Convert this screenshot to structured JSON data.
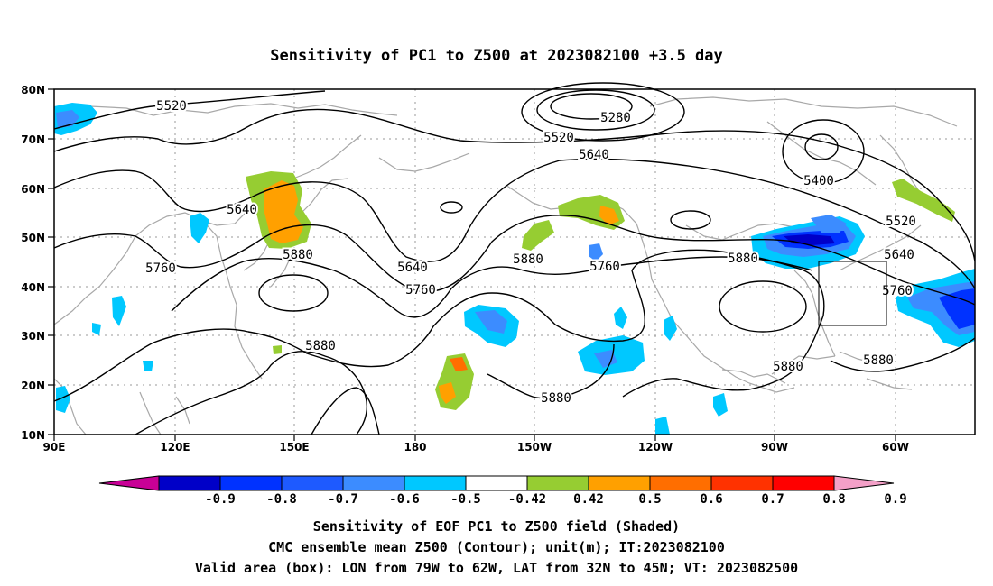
{
  "title": "Sensitivity of PC1 to Z500 at 2023082100 +3.5 day",
  "lat_labels": [
    "80N",
    "70N",
    "60N",
    "50N",
    "40N",
    "30N",
    "20N",
    "10N"
  ],
  "lon_labels": [
    "90E",
    "120E",
    "150E",
    "180",
    "150W",
    "120W",
    "90W",
    "60W"
  ],
  "contour_labels": [
    "5520",
    "5280",
    "5520",
    "5640",
    "5400",
    "5640",
    "5760",
    "5880",
    "5640",
    "5760",
    "5880",
    "5760",
    "5880",
    "5640",
    "5520",
    "5760",
    "5880",
    "5880",
    "5880",
    "5880"
  ],
  "colorbar": {
    "labels": [
      "-0.9",
      "-0.8",
      "-0.7",
      "-0.6",
      "-0.5",
      "-0.42",
      "0.42",
      "0.5",
      "0.6",
      "0.7",
      "0.8",
      "0.9"
    ],
    "colors": [
      "#c80096",
      "#0000c8",
      "#0032ff",
      "#1e5aff",
      "#3c8cff",
      "#00c8ff",
      "#ffffff",
      "#96cd32",
      "#ffa000",
      "#ff6e00",
      "#ff3200",
      "#ff0000",
      "#f4a0c8"
    ]
  },
  "footer": {
    "line1": "Sensitivity of EOF PC1 to Z500 field (Shaded)",
    "line2": "CMC ensemble mean Z500 (Contour); unit(m); IT:2023082100",
    "line3": "Valid area (box): LON from 79W to 62W, LAT from 32N to 45N; VT: 2023082500"
  }
}
